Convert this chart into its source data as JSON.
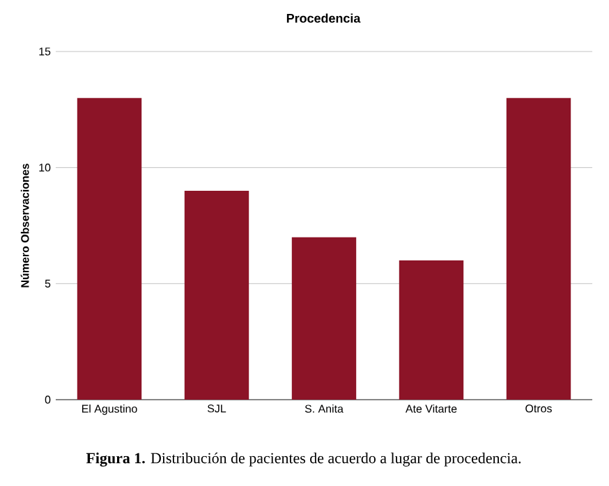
{
  "chart_data": {
    "type": "bar",
    "title": "Procedencia",
    "ylabel": "Número Observaciones",
    "categories": [
      "El Agustino",
      "SJL",
      "S. Anita",
      "Ate Vitarte",
      "Otros"
    ],
    "values": [
      13,
      9,
      7,
      6,
      13
    ],
    "color": "#8c1427",
    "ylim": [
      0,
      15
    ],
    "yticks": [
      0,
      5,
      10,
      15
    ],
    "grid": "y",
    "annotations": [
      "**Figura 1.** Distribución de pacientes de acuerdo a lugar de procedencia."
    ]
  }
}
